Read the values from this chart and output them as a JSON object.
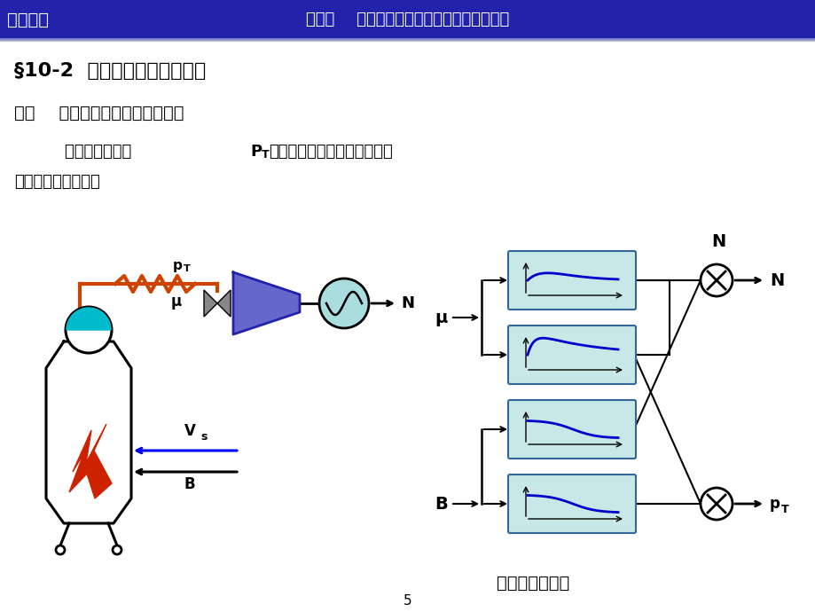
{
  "bg_color": "#ffffff",
  "header_bg": "#2222aa",
  "header_line": "#8888cc",
  "header_left": "过程控制",
  "header_center": "第十章    火力发电厂大型单元机组的自动控制",
  "title": "§10-2  单元机组负荷控制系统",
  "subtitle": "一、    负荷控制系统的控制任务：",
  "body1a": "    在保持主汽压力",
  "body1_P": "P",
  "body1_T": "T",
  "body1b": "稳定的前提下，紧密跟踪电网",
  "body2": "对机组负荷的要求。",
  "footer": "负荷对象特性：",
  "page": "5",
  "pipe_color": "#cc4400",
  "zigzag_color": "#cc4400",
  "valve_color": "#888888",
  "turbine_color": "#3333bb",
  "gen_color": "#aadddd",
  "flame_color": "#cc2200",
  "water_color": "#00bbcc",
  "box_border": "#336699",
  "box_fill": "#c8e8e8",
  "curve_color": "#0000cc"
}
